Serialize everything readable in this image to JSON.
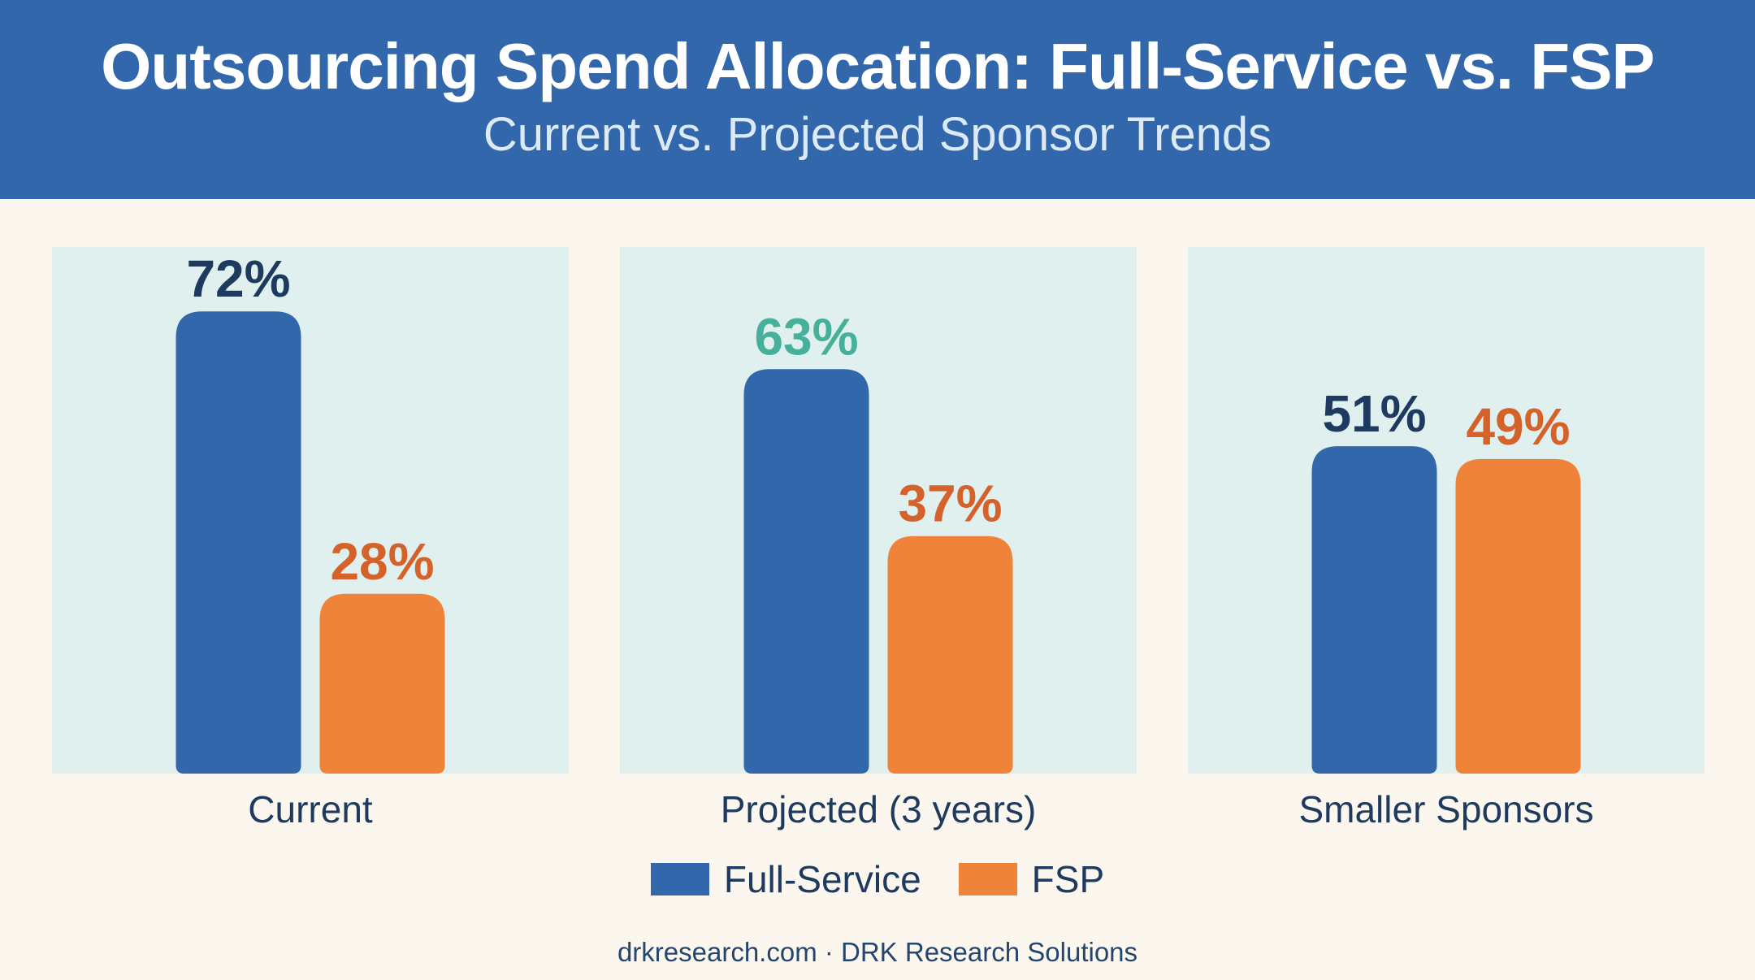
{
  "header": {
    "title": "Outsourcing Spend Allocation: Full-Service vs. FSP",
    "subtitle": "Current vs. Projected Sponsor Trends"
  },
  "colors": {
    "full_service": "#3367ab",
    "fsp": "#f0833a",
    "panel": "#dff0ee",
    "label_dark": "#1e3a5f",
    "label_teal": "#47b09b",
    "label_orange": "#d4622a"
  },
  "chart_data": {
    "type": "bar",
    "title": "Outsourcing Spend Allocation: Full-Service vs. FSP",
    "subtitle": "Current vs. Projected Sponsor Trends",
    "categories": [
      "Current",
      "Projected (3 years)",
      "Smaller Sponsors"
    ],
    "series": [
      {
        "name": "Full-Service",
        "values": [
          72,
          63,
          51
        ],
        "labels": [
          "72%",
          "63%",
          "51%"
        ],
        "label_colors": [
          "#1e3a5f",
          "#47b09b",
          "#1e3a5f"
        ]
      },
      {
        "name": "FSP",
        "values": [
          28,
          37,
          49
        ],
        "labels": [
          "28%",
          "37%",
          "49%"
        ],
        "label_colors": [
          "#d4622a",
          "#d4622a",
          "#d4622a"
        ]
      }
    ],
    "ylim": [
      0,
      100
    ],
    "grid": false,
    "legend_position": "bottom-center"
  },
  "legend": {
    "items": [
      {
        "label": "Full-Service"
      },
      {
        "label": "FSP"
      }
    ]
  },
  "footer": {
    "text": "drkresearch.com · DRK Research Solutions"
  }
}
